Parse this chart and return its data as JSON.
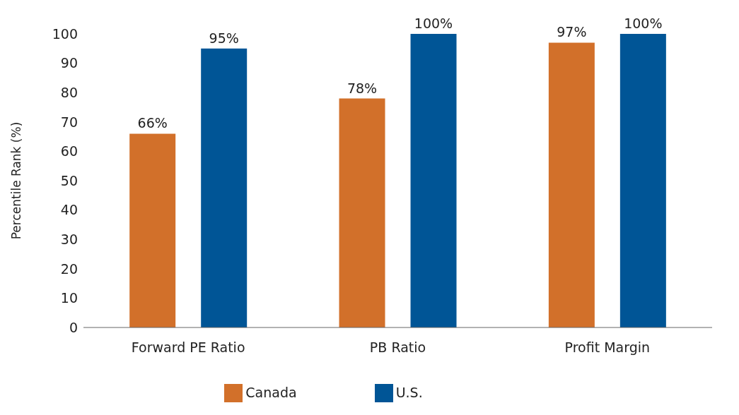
{
  "chart_data": {
    "type": "bar",
    "ylabel": "Percentile Rank (%)",
    "categories": [
      "Forward PE Ratio",
      "PB Ratio",
      "Profit Margin"
    ],
    "series": [
      {
        "name": "Canada",
        "color": "#d2702a",
        "values": [
          66,
          78,
          97
        ],
        "value_labels": [
          "66%",
          "78%",
          "97%"
        ]
      },
      {
        "name": "U.S.",
        "color": "#005596",
        "values": [
          95,
          100,
          100
        ],
        "value_labels": [
          "95%",
          "100%",
          "100%"
        ]
      }
    ],
    "ylim": [
      0,
      100
    ],
    "yticks": [
      0,
      10,
      20,
      30,
      40,
      50,
      60,
      70,
      80,
      90,
      100
    ],
    "legend": "bottom"
  }
}
